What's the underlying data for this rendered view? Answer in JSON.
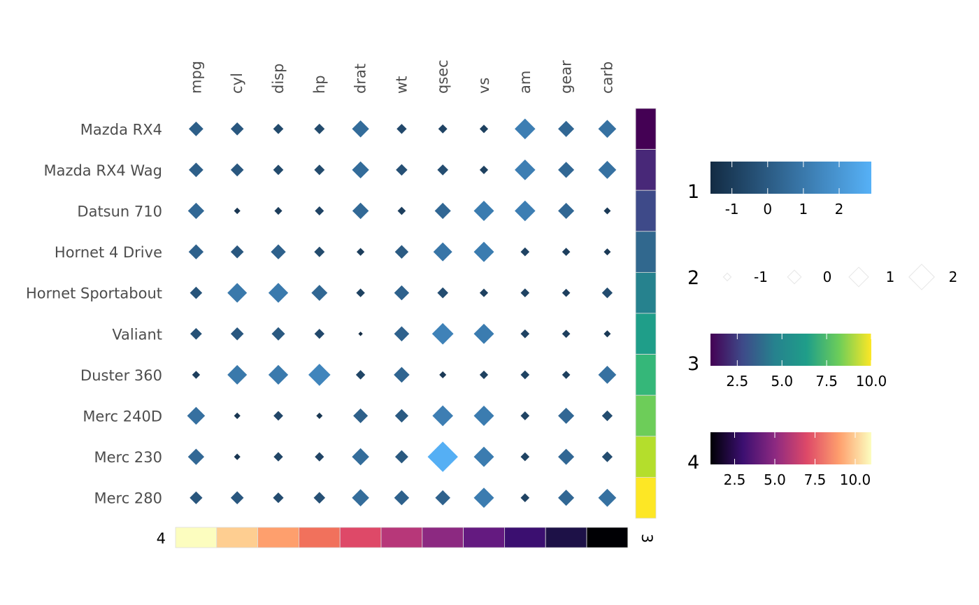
{
  "chart_data": {
    "type": "heatmap",
    "marker_shape": "diamond",
    "columns": [
      "mpg",
      "cyl",
      "disp",
      "hp",
      "drat",
      "wt",
      "qsec",
      "vs",
      "am",
      "gear",
      "carb"
    ],
    "rows": [
      "Mazda RX4",
      "Mazda RX4 Wag",
      "Datsun 710",
      "Hornet 4 Drive",
      "Hornet Sportabout",
      "Valiant",
      "Duster 360",
      "Merc 240D",
      "Merc 230",
      "Merc 280"
    ],
    "values": [
      [
        0.15,
        -0.11,
        -0.57,
        -0.54,
        0.57,
        -0.61,
        -0.78,
        -0.87,
        1.19,
        0.42,
        0.74
      ],
      [
        0.15,
        -0.11,
        -0.57,
        -0.54,
        0.57,
        -0.35,
        -0.46,
        -0.87,
        1.19,
        0.42,
        0.74
      ],
      [
        0.45,
        -1.22,
        -0.99,
        -0.78,
        0.47,
        -0.92,
        0.43,
        1.12,
        1.19,
        0.42,
        -1.12
      ],
      [
        0.22,
        -0.11,
        0.22,
        -0.54,
        -0.97,
        -0.0,
        0.89,
        1.12,
        -0.81,
        -0.93,
        -1.12
      ],
      [
        -0.23,
        1.01,
        1.04,
        0.41,
        -0.84,
        0.23,
        -0.46,
        -0.87,
        -0.81,
        -0.93,
        -0.5
      ],
      [
        -0.33,
        -0.11,
        -0.05,
        -0.61,
        -1.56,
        0.25,
        1.33,
        1.12,
        -0.81,
        -0.93,
        -1.12
      ],
      [
        -0.96,
        1.01,
        1.04,
        1.43,
        -0.72,
        0.36,
        -1.12,
        -0.87,
        -0.81,
        -0.93,
        0.74
      ],
      [
        0.72,
        -1.22,
        -0.68,
        -1.24,
        0.18,
        -0.03,
        1.2,
        1.12,
        -0.81,
        0.42,
        -0.5
      ],
      [
        0.45,
        -1.22,
        -0.73,
        -0.75,
        0.6,
        -0.07,
        2.83,
        1.12,
        -0.81,
        0.42,
        -0.5
      ],
      [
        -0.15,
        -0.11,
        -0.51,
        -0.35,
        0.6,
        0.23,
        0.25,
        1.12,
        -0.81,
        0.42,
        0.74
      ]
    ],
    "color_scale": {
      "low": "#132B43",
      "high": "#56B1F7",
      "range": [
        -1.6,
        2.9
      ]
    },
    "size_range": [
      -1.6,
      2.9
    ],
    "right_annotation": {
      "label": "3",
      "values": [
        1,
        2,
        3,
        4,
        5,
        6,
        7,
        8,
        9,
        10
      ],
      "colors": [
        "#440154",
        "#482878",
        "#3E4A89",
        "#31688E",
        "#26828E",
        "#1F9E89",
        "#35B779",
        "#6DCD59",
        "#B4DE2C",
        "#FDE725"
      ]
    },
    "bottom_annotation": {
      "label": "4",
      "values": [
        11,
        10,
        9,
        8,
        7,
        6,
        5,
        4,
        3,
        2,
        1
      ],
      "colors": [
        "#FCFDBF",
        "#FECE91",
        "#FE9F6D",
        "#F1715C",
        "#DE4968",
        "#B73779",
        "#8C2981",
        "#641A80",
        "#3B0F70",
        "#1D1147",
        "#000004"
      ]
    },
    "legends": [
      {
        "title": "1",
        "type": "colorbar",
        "ticks": [
          "-1",
          "0",
          "1",
          "2"
        ],
        "tick_values": [
          -1,
          0,
          1,
          2
        ],
        "range": [
          -1.6,
          2.9
        ],
        "colors": [
          "#132B43",
          "#56B1F7"
        ]
      },
      {
        "title": "2",
        "type": "size",
        "ticks": [
          "-1",
          "0",
          "1",
          "2"
        ],
        "tick_values": [
          -1,
          0,
          1,
          2
        ]
      },
      {
        "title": "3",
        "type": "colorbar",
        "ticks": [
          "2.5",
          "5.0",
          "7.5",
          "10.0"
        ],
        "tick_values": [
          2.5,
          5,
          7.5,
          10
        ],
        "range": [
          1,
          10
        ],
        "colors": [
          "#440154",
          "#3E4A89",
          "#26828E",
          "#1F9E89",
          "#6DCD59",
          "#FDE725"
        ]
      },
      {
        "title": "4",
        "type": "colorbar",
        "ticks": [
          "2.5",
          "5.0",
          "7.5",
          "10.0"
        ],
        "tick_values": [
          2.5,
          5,
          7.5,
          10
        ],
        "range": [
          1,
          11
        ],
        "colors": [
          "#000004",
          "#3B0F70",
          "#8C2981",
          "#DE4968",
          "#FE9F6D",
          "#FCFDBF"
        ]
      }
    ]
  }
}
